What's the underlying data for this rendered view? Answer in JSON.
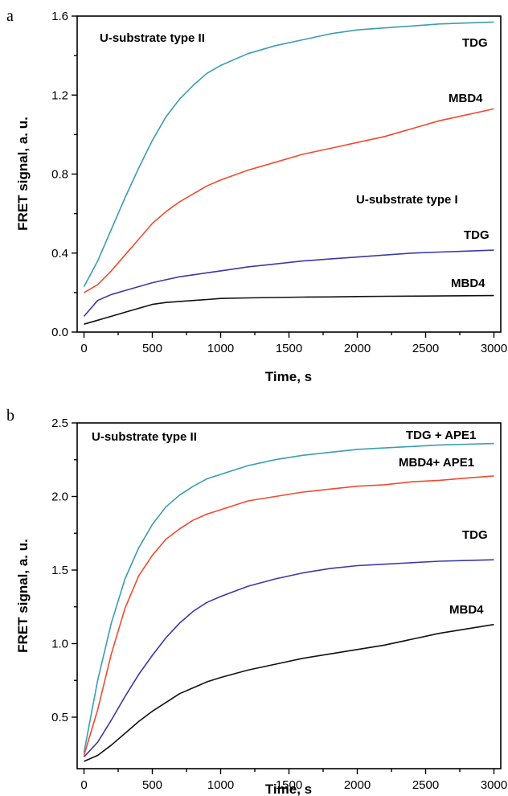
{
  "chart_data": [
    {
      "type": "line",
      "panel_label": "a",
      "xlabel": "Time, s",
      "ylabel": "FRET signal, a. u.",
      "xlim": [
        -50,
        3050
      ],
      "ylim": [
        0.0,
        1.6
      ],
      "xticks": [
        0,
        500,
        1000,
        1500,
        2000,
        2500,
        3000
      ],
      "yticks": [
        0.0,
        0.4,
        0.8,
        1.2,
        1.6
      ],
      "ytick_labels": [
        "0.0",
        "0.4",
        "0.8",
        "1.2",
        "1.6"
      ],
      "grid": false,
      "annotations": [
        {
          "text": "U-substrate type II"
        },
        {
          "text": "TDG"
        },
        {
          "text": "MBD4"
        },
        {
          "text": "U-substrate type I"
        },
        {
          "text": "TDG"
        },
        {
          "text": "MBD4"
        }
      ],
      "series": [
        {
          "label": "TDG (U-substrate type II)",
          "color": "#3a9db0",
          "x": [
            0,
            100,
            200,
            300,
            400,
            500,
            600,
            700,
            800,
            900,
            1000,
            1200,
            1400,
            1600,
            1800,
            2000,
            2200,
            2400,
            2600,
            2800,
            3000
          ],
          "y": [
            0.23,
            0.36,
            0.52,
            0.68,
            0.83,
            0.97,
            1.09,
            1.18,
            1.25,
            1.31,
            1.35,
            1.41,
            1.45,
            1.48,
            1.51,
            1.53,
            1.54,
            1.55,
            1.56,
            1.565,
            1.57
          ]
        },
        {
          "label": "MBD4 (U-substrate type II)",
          "color": "#f04a30",
          "x": [
            0,
            100,
            200,
            300,
            400,
            500,
            600,
            700,
            800,
            900,
            1000,
            1200,
            1400,
            1600,
            1800,
            2000,
            2200,
            2400,
            2600,
            2800,
            3000
          ],
          "y": [
            0.2,
            0.24,
            0.31,
            0.39,
            0.47,
            0.55,
            0.61,
            0.66,
            0.7,
            0.74,
            0.77,
            0.82,
            0.86,
            0.9,
            0.93,
            0.96,
            0.99,
            1.03,
            1.07,
            1.1,
            1.13
          ]
        },
        {
          "label": "TDG (U-substrate type I)",
          "color": "#3a3aa8",
          "x": [
            0,
            100,
            200,
            300,
            400,
            500,
            600,
            700,
            800,
            900,
            1000,
            1200,
            1400,
            1600,
            1800,
            2000,
            2200,
            2400,
            2600,
            2800,
            3000
          ],
          "y": [
            0.08,
            0.16,
            0.19,
            0.21,
            0.23,
            0.25,
            0.265,
            0.28,
            0.29,
            0.3,
            0.31,
            0.33,
            0.345,
            0.36,
            0.37,
            0.38,
            0.39,
            0.4,
            0.405,
            0.41,
            0.415
          ]
        },
        {
          "label": "MBD4 (U-substrate type I)",
          "color": "#111111",
          "x": [
            0,
            100,
            200,
            300,
            400,
            500,
            600,
            700,
            800,
            900,
            1000,
            1200,
            1400,
            1600,
            1800,
            2000,
            2200,
            2400,
            2600,
            2800,
            3000
          ],
          "y": [
            0.04,
            0.06,
            0.08,
            0.1,
            0.12,
            0.14,
            0.15,
            0.155,
            0.16,
            0.165,
            0.17,
            0.173,
            0.175,
            0.177,
            0.178,
            0.18,
            0.181,
            0.182,
            0.183,
            0.184,
            0.185
          ]
        }
      ]
    },
    {
      "type": "line",
      "panel_label": "b",
      "xlabel": "Time, s",
      "ylabel": "FRET signal, a. u.",
      "xlim": [
        -50,
        3050
      ],
      "ylim": [
        0.15,
        2.5
      ],
      "xticks": [
        0,
        500,
        1000,
        1500,
        2000,
        2500,
        3000
      ],
      "yticks": [
        0.5,
        1.0,
        1.5,
        2.0,
        2.5
      ],
      "ytick_labels": [
        "0.5",
        "1.0",
        "1.5",
        "2.0",
        "2.5"
      ],
      "grid": false,
      "annotations": [
        {
          "text": "U-substrate type II"
        },
        {
          "text": "TDG + APE1"
        },
        {
          "text": "MBD4+ APE1"
        },
        {
          "text": "TDG"
        },
        {
          "text": "MBD4"
        }
      ],
      "series": [
        {
          "label": "TDG + APE1",
          "color": "#3a9db0",
          "x": [
            0,
            100,
            200,
            300,
            400,
            500,
            600,
            700,
            800,
            900,
            1000,
            1200,
            1400,
            1600,
            1800,
            2000,
            2200,
            2400,
            2600,
            2800,
            3000
          ],
          "y": [
            0.26,
            0.75,
            1.14,
            1.44,
            1.65,
            1.81,
            1.93,
            2.01,
            2.07,
            2.12,
            2.15,
            2.21,
            2.25,
            2.28,
            2.3,
            2.32,
            2.33,
            2.34,
            2.35,
            2.355,
            2.36
          ]
        },
        {
          "label": "MBD4+ APE1",
          "color": "#f04a30",
          "x": [
            0,
            100,
            200,
            300,
            400,
            500,
            600,
            700,
            800,
            900,
            1000,
            1200,
            1400,
            1600,
            1800,
            2000,
            2200,
            2400,
            2600,
            2800,
            3000
          ],
          "y": [
            0.24,
            0.55,
            0.93,
            1.24,
            1.46,
            1.6,
            1.71,
            1.78,
            1.84,
            1.88,
            1.91,
            1.97,
            2.0,
            2.03,
            2.05,
            2.07,
            2.08,
            2.1,
            2.11,
            2.125,
            2.14
          ]
        },
        {
          "label": "TDG",
          "color": "#3a3aa8",
          "x": [
            0,
            100,
            200,
            300,
            400,
            500,
            600,
            700,
            800,
            900,
            1000,
            1200,
            1400,
            1600,
            1800,
            2000,
            2200,
            2400,
            2600,
            2800,
            3000
          ],
          "y": [
            0.23,
            0.33,
            0.48,
            0.64,
            0.79,
            0.92,
            1.04,
            1.14,
            1.22,
            1.28,
            1.32,
            1.39,
            1.44,
            1.48,
            1.51,
            1.53,
            1.54,
            1.55,
            1.56,
            1.565,
            1.57
          ]
        },
        {
          "label": "MBD4",
          "color": "#111111",
          "x": [
            0,
            100,
            200,
            300,
            400,
            500,
            600,
            700,
            800,
            900,
            1000,
            1200,
            1400,
            1600,
            1800,
            2000,
            2200,
            2400,
            2600,
            2800,
            3000
          ],
          "y": [
            0.2,
            0.24,
            0.31,
            0.39,
            0.47,
            0.54,
            0.6,
            0.66,
            0.7,
            0.74,
            0.77,
            0.82,
            0.86,
            0.9,
            0.93,
            0.96,
            0.99,
            1.03,
            1.07,
            1.1,
            1.13
          ]
        }
      ]
    }
  ]
}
